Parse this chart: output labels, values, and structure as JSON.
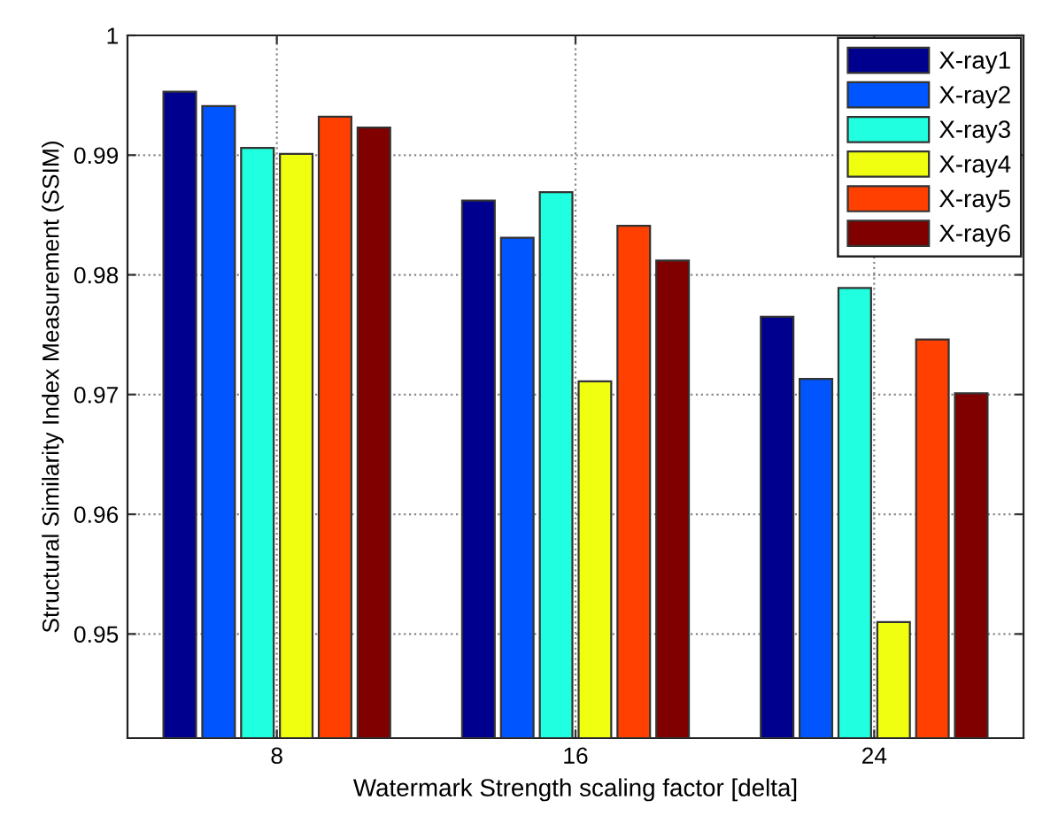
{
  "chart_data": {
    "type": "bar",
    "xlabel": "Watermark Strength scaling factor [delta]",
    "ylabel": "Structural Similarity Index Measurement (SSIM)",
    "categories": [
      "8",
      "16",
      "24"
    ],
    "series": [
      {
        "name": "X-ray1",
        "color": "#00008f",
        "values": [
          0.9953,
          0.9862,
          0.9765
        ]
      },
      {
        "name": "X-ray2",
        "color": "#0055ff",
        "values": [
          0.9941,
          0.9831,
          0.9713
        ]
      },
      {
        "name": "X-ray3",
        "color": "#20ffdf",
        "values": [
          0.9906,
          0.9869,
          0.9789
        ]
      },
      {
        "name": "X-ray4",
        "color": "#f0ff10",
        "values": [
          0.9901,
          0.9711,
          0.951
        ]
      },
      {
        "name": "X-ray5",
        "color": "#ff4000",
        "values": [
          0.9932,
          0.9841,
          0.9746
        ]
      },
      {
        "name": "X-ray6",
        "color": "#800000",
        "values": [
          0.9923,
          0.9812,
          0.9701
        ]
      }
    ],
    "ylim": [
      0.9413,
      1
    ],
    "yticks": [
      0.95,
      0.96,
      0.97,
      0.98,
      0.99,
      {
        "value": 1,
        "label": "1"
      }
    ],
    "grid": true,
    "legend": "top right"
  }
}
